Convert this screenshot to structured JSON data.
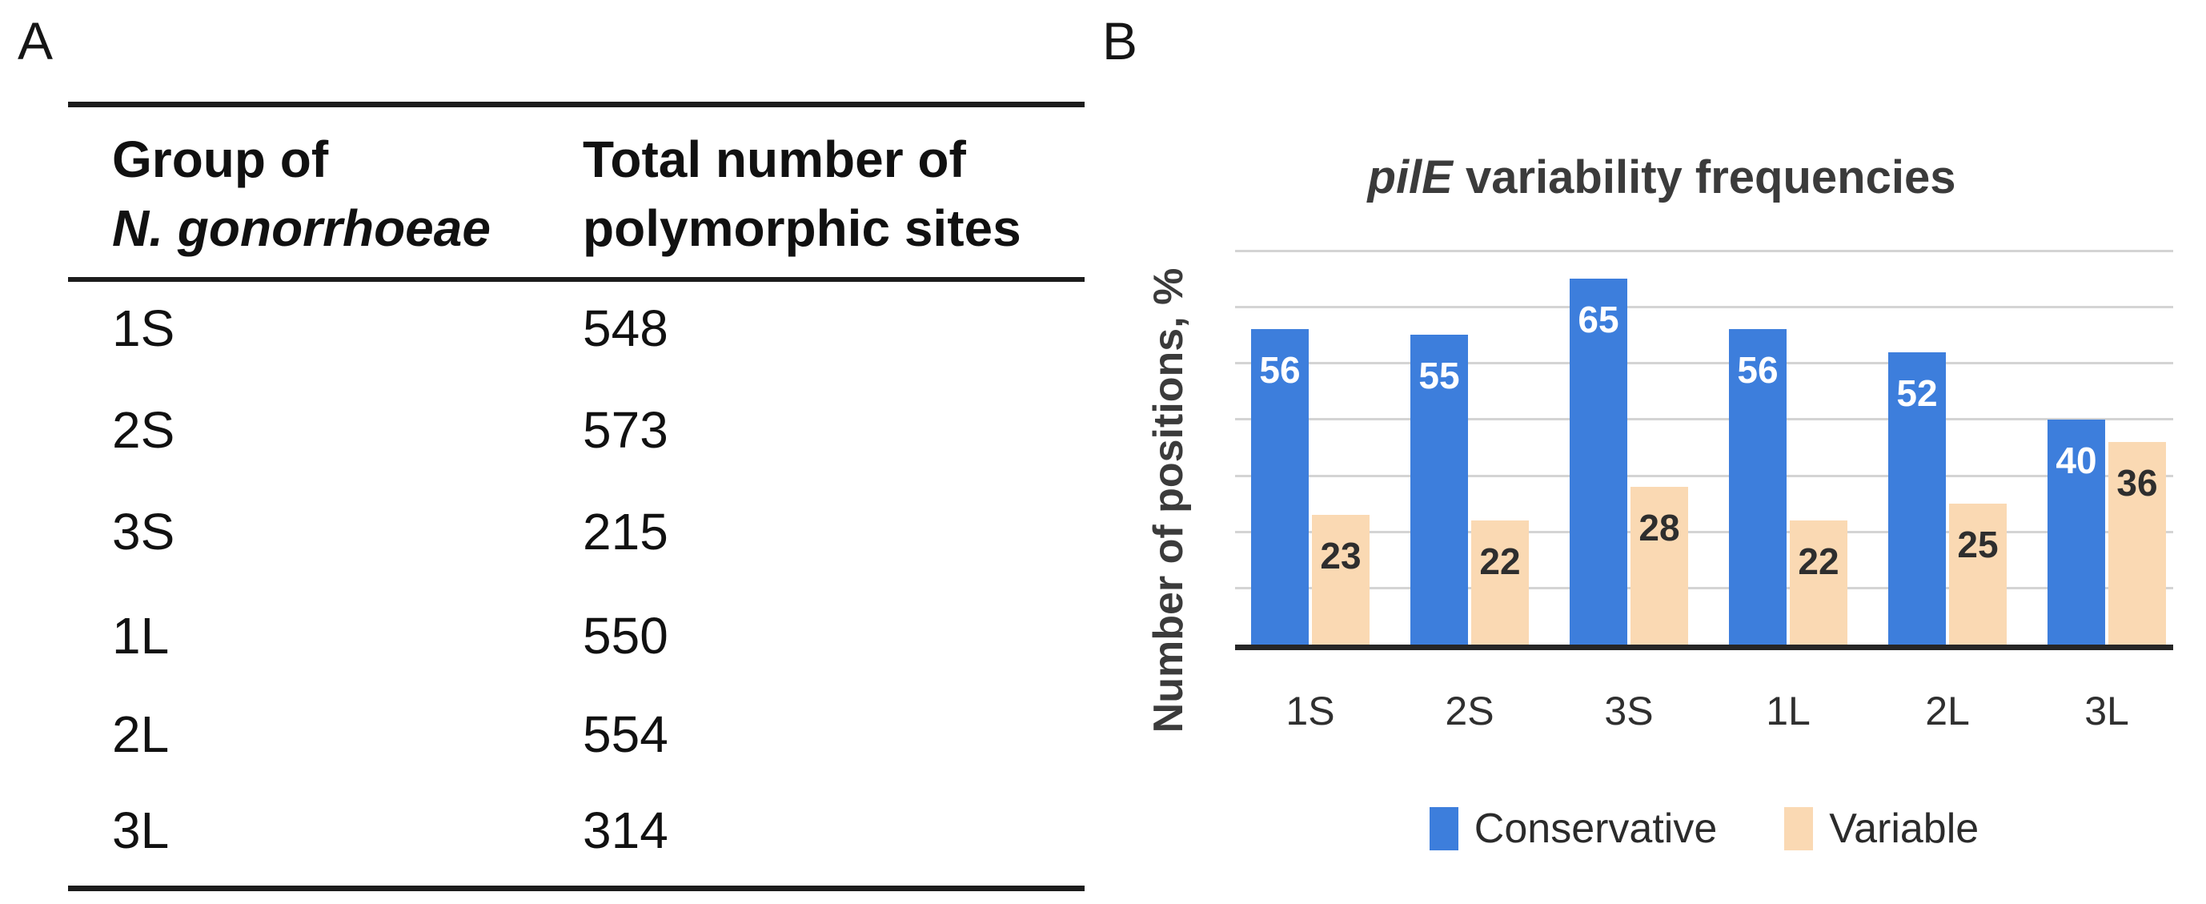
{
  "figure": {
    "panel_a_label": "A",
    "panel_b_label": "B"
  },
  "table": {
    "headers": {
      "col1_line1": "Group of",
      "col1_line2": "N. gonorrhoeae",
      "col2_line1": "Total number of",
      "col2_line2": "polymorphic sites"
    },
    "rows": [
      {
        "group": "1S",
        "sites": "548"
      },
      {
        "group": "2S",
        "sites": "573"
      },
      {
        "group": "3S",
        "sites": "215"
      },
      {
        "group": "1L",
        "sites": "550"
      },
      {
        "group": "2L",
        "sites": "554"
      },
      {
        "group": "3L",
        "sites": "314"
      }
    ]
  },
  "chart_data": {
    "type": "bar",
    "title": "pilE variability frequencies",
    "title_italic": "pilE",
    "title_rest": " variability frequencies",
    "xlabel": "",
    "ylabel": "Number of positions, %",
    "categories": [
      "1S",
      "2S",
      "3S",
      "1L",
      "2L",
      "3L"
    ],
    "series": [
      {
        "name": "Conservative",
        "color": "#3D7EDC",
        "label_color": "#FFFFFF",
        "values": [
          56,
          55,
          65,
          56,
          52,
          40
        ]
      },
      {
        "name": "Variable",
        "color": "#FAD9B3",
        "label_color": "#2E2E2E",
        "values": [
          23,
          22,
          28,
          22,
          25,
          36
        ]
      }
    ],
    "ylim": [
      0,
      70
    ],
    "grid_step": 10,
    "grid": true,
    "grid_color": "#D4D4D4",
    "axis_color": "#262626",
    "legend_position": "bottom",
    "bar_labels": true,
    "y_tick_labels": "none"
  }
}
